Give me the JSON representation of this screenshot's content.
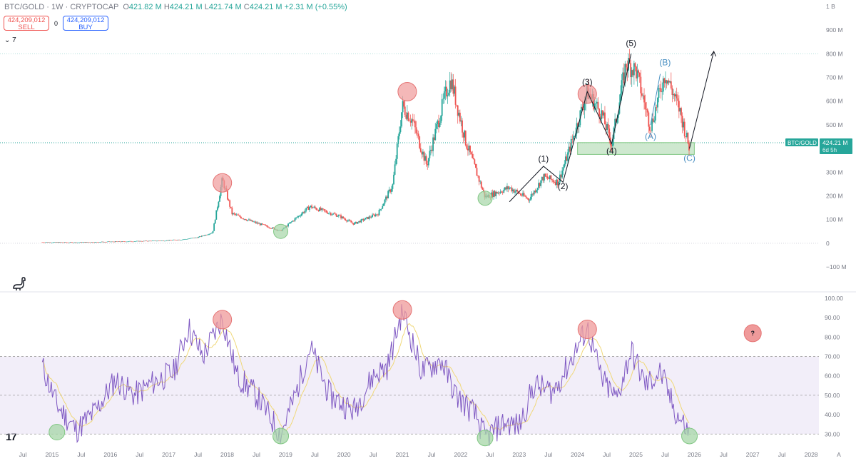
{
  "legend": {
    "symbol": "BTC/GOLD",
    "interval": "1W",
    "exchange": "CRYPTOCAP",
    "open_label": "O",
    "open": "421.82 M",
    "high_label": "H",
    "high": "424.21 M",
    "low_label": "L",
    "low": "421.74 M",
    "close_label": "C",
    "close": "424.21 M",
    "change": "+2.31 M (+0.55%)"
  },
  "trade": {
    "sell_price": "424,209,012",
    "sell_label": "SELL",
    "buy_price": "424,209,012",
    "buy_label": "BUY",
    "spread": "0"
  },
  "indicators_toggle": "7",
  "price_label": {
    "symbol": "BTC/GOLD",
    "value": "424.21 M",
    "countdown": "6d 5h"
  },
  "colors": {
    "up": "#26a69a",
    "down": "#ef5350",
    "rsi_line": "#7e57c2",
    "rsi_ma": "#f0d87a",
    "rsi_band": "#ede7f6",
    "top_marker": "#ef9a9a",
    "bottom_marker": "#a5d6a7"
  },
  "chart_data": [
    {
      "type": "line",
      "title": "",
      "series": [
        {
          "values_note": "",
          "x": [
            "2014-11",
            "2015-06",
            "2016-01",
            "2016-06",
            "2016-12",
            "2017-04",
            "2017-07",
            "2017-10",
            "2017-12",
            "2018-02",
            "2018-06",
            "2018-12",
            "2019-06",
            "2019-12",
            "2020-03",
            "2020-08",
            "2020-11",
            "2021-01",
            "2021-03",
            "2021-06",
            "2021-10",
            "2021-11",
            "2022-02",
            "2022-06",
            "2022-11",
            "2023-03",
            "2023-06",
            "2023-09",
            "2023-11",
            "2024-03",
            "2024-06",
            "2024-08",
            "2024-11",
            "2025-01",
            "2025-04",
            "2025-07",
            "2025-10",
            "2025-12"
          ],
          "y": [
            4,
            3,
            6,
            8,
            11,
            16,
            25,
            45,
            270,
            125,
            92,
            52,
            155,
            115,
            82,
            125,
            245,
            580,
            520,
            330,
            640,
            690,
            430,
            195,
            235,
            185,
            280,
            258,
            375,
            640,
            545,
            420,
            760,
            730,
            490,
            720,
            560,
            400
          ]
        }
      ],
      "y_ticks": [
        "1 B",
        "900 M",
        "800 M",
        "700 M",
        "600 M",
        "500 M",
        "400 M",
        "300 M",
        "200 M",
        "100 M",
        "0",
        "−100 M"
      ],
      "ylim": [
        -100,
        1000
      ],
      "wave_labels": [
        "(1)",
        "(2)",
        "(3)",
        "(4)",
        "(5)",
        "(A)",
        "(B)",
        "(C)"
      ],
      "support_zone": [
        375,
        425
      ]
    },
    {
      "type": "line",
      "title": "",
      "series": [
        {
          "name": "RSI",
          "x": [
            "2014-11",
            "2015-02",
            "2015-06",
            "2015-10",
            "2016-02",
            "2016-06",
            "2016-10",
            "2017-02",
            "2017-05",
            "2017-08",
            "2017-12",
            "2018-03",
            "2018-07",
            "2018-12",
            "2019-03",
            "2019-06",
            "2019-10",
            "2020-03",
            "2020-07",
            "2020-10",
            "2021-01",
            "2021-05",
            "2021-09",
            "2021-12",
            "2022-04",
            "2022-06",
            "2022-10",
            "2023-01",
            "2023-04",
            "2023-08",
            "2023-11",
            "2024-03",
            "2024-06",
            "2024-09",
            "2024-12",
            "2025-03",
            "2025-06",
            "2025-09",
            "2025-12"
          ],
          "y": [
            65,
            45,
            32,
            42,
            58,
            50,
            57,
            62,
            85,
            70,
            90,
            60,
            50,
            30,
            50,
            75,
            50,
            42,
            60,
            65,
            94,
            62,
            68,
            50,
            40,
            28,
            36,
            34,
            55,
            52,
            65,
            85,
            58,
            48,
            73,
            55,
            62,
            42,
            30
          ]
        }
      ],
      "y_ticks": [
        "100.00",
        "90.00",
        "80.00",
        "70.00",
        "60.00",
        "50.00",
        "40.00",
        "30.00"
      ],
      "ylim": [
        22,
        100
      ],
      "band": [
        30,
        70
      ],
      "question_marker": "?"
    }
  ],
  "x_axis": {
    "ticks": [
      "Jul",
      "2015",
      "Jul",
      "2016",
      "Jul",
      "2017",
      "Jul",
      "2018",
      "Jul",
      "2019",
      "Jul",
      "2020",
      "Jul",
      "2021",
      "Jul",
      "2022",
      "Jul",
      "2023",
      "Jul",
      "2024",
      "Jul",
      "2025",
      "Jul",
      "2026",
      "Jul",
      "2027",
      "Jul",
      "2028"
    ],
    "auto_label": "A"
  },
  "logo": "17"
}
